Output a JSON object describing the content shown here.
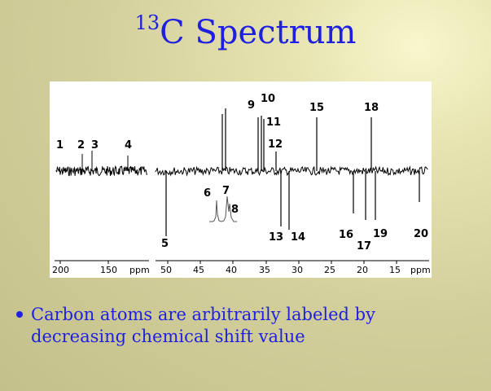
{
  "slide": {
    "title_sup": "13",
    "title_main": "C Spectrum",
    "bullet": "Carbon atoms are arbitrarily labeled by decreasing chemical shift value"
  },
  "spectrum": {
    "peak_labels": [
      "1",
      "2",
      "3",
      "4",
      "5",
      "6",
      "7",
      "8",
      "9",
      "10",
      "11",
      "12",
      "13",
      "14",
      "15",
      "16",
      "17",
      "18",
      "19",
      "20"
    ],
    "left_axis_ticks": [
      "200",
      "150"
    ],
    "right_axis_ticks": [
      "50",
      "45",
      "40",
      "35",
      "30",
      "25",
      "20",
      "15"
    ],
    "axis_unit": "ppm"
  },
  "colors": {
    "title": "#1f1fe0",
    "text": "#1f1fe0",
    "panel": "#ffffff"
  }
}
